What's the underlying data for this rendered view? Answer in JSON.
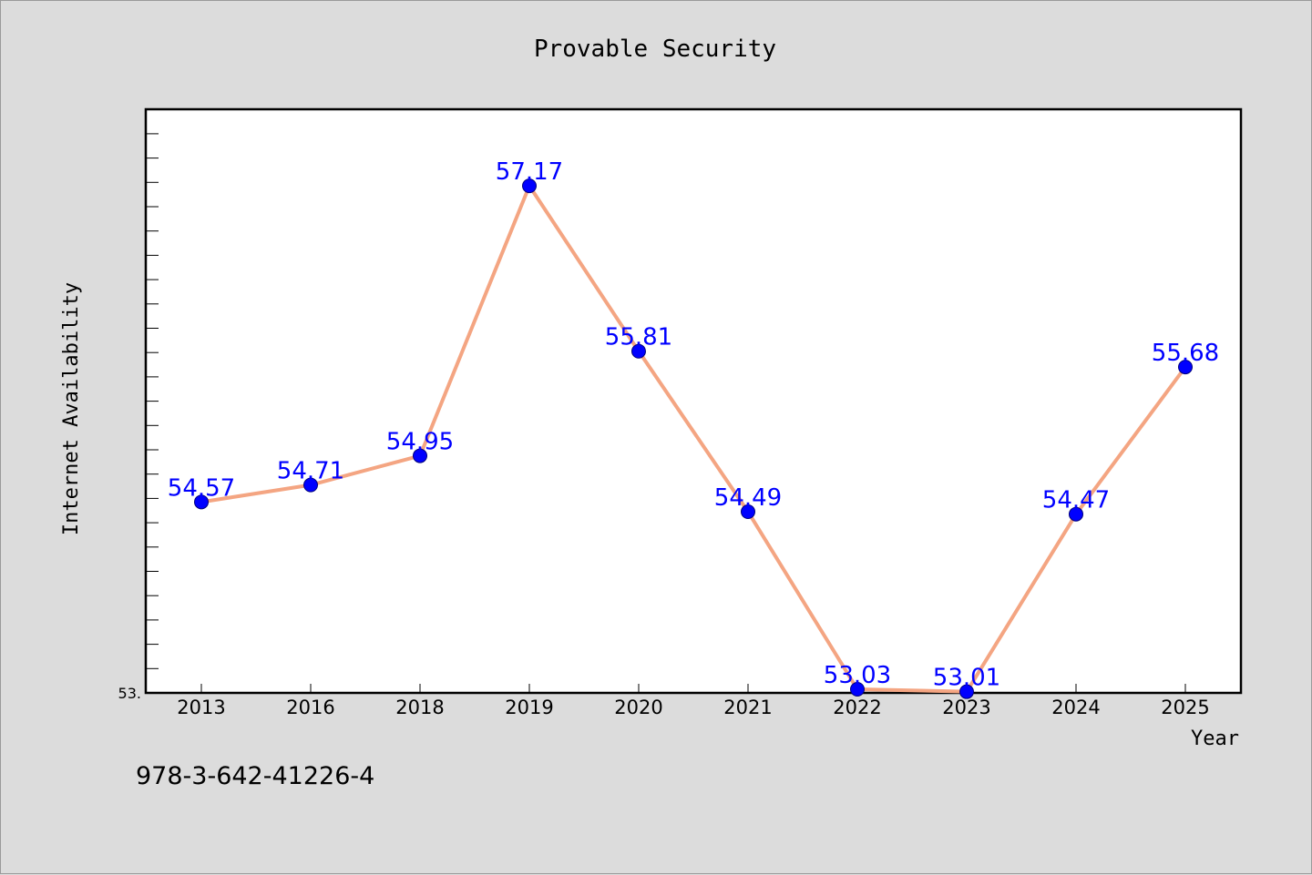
{
  "colors": {
    "background": "#dcdcdc",
    "plot_background": "#ffffff",
    "line": "#f4a582",
    "marker": "#0000ff",
    "data_label": "#0000ff"
  },
  "footer": {
    "isbn": "978-3-642-41226-4"
  },
  "chart_data": {
    "type": "line",
    "title": "Provable Security",
    "xlabel": "Year",
    "ylabel": "Internet Availability",
    "categories": [
      "2013",
      "2016",
      "2018",
      "2019",
      "2020",
      "2021",
      "2022",
      "2023",
      "2024",
      "2025"
    ],
    "series": [
      {
        "values": [
          54.57,
          54.71,
          54.95,
          57.17,
          55.81,
          54.49,
          53.03,
          53.01,
          54.47,
          55.68
        ],
        "labels": [
          "54.57",
          "54.71",
          "54.95",
          "57.17",
          "55.81",
          "54.49",
          "53.03",
          "53.01",
          "54.47",
          "55.68"
        ]
      }
    ],
    "ylim": [
      53.0,
      57.8
    ],
    "y_tick_label": "53.",
    "grid": false,
    "legend": "none"
  }
}
